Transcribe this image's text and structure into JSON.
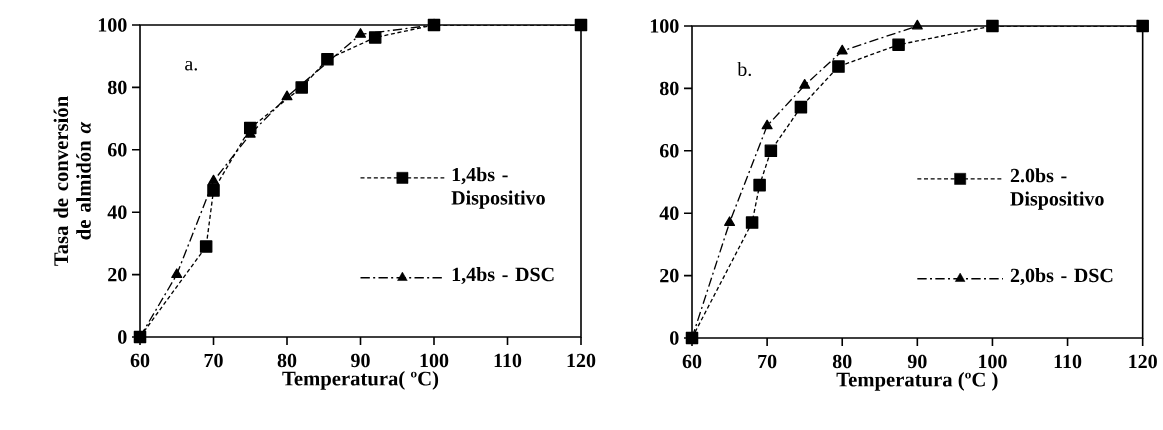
{
  "chart_data": [
    {
      "type": "line",
      "xlabel": "Temperatura( ºC)",
      "ylabel": "Tasa de conversión de almidón *α*",
      "annotations": [
        "a."
      ],
      "xlim": [
        60,
        120
      ],
      "ylim": [
        0,
        100
      ],
      "xticks": [
        60,
        70,
        80,
        90,
        100,
        110,
        120
      ],
      "yticks": [
        0,
        20,
        40,
        60,
        80,
        100
      ],
      "grid": false,
      "legend": "right",
      "series": [
        {
          "name": "1,4bs - Dispositivo",
          "color": "#000000",
          "marker": "square",
          "line_style": "dashed",
          "x": [
            60,
            69,
            70,
            75,
            82,
            85.5,
            92,
            100,
            120
          ],
          "values": [
            0,
            29,
            47,
            67,
            80,
            89,
            96,
            100,
            100
          ]
        },
        {
          "name": "1,4bs - DSC",
          "color": "#000000",
          "marker": "triangle",
          "line_style": "dashdot",
          "x": [
            60,
            65,
            70,
            75,
            80,
            90,
            100
          ],
          "values": [
            0,
            20,
            50,
            65,
            77,
            97,
            100
          ]
        }
      ]
    },
    {
      "type": "line",
      "xlabel": "Temperatura (ºC )",
      "annotations": [
        "b."
      ],
      "xlim": [
        60,
        120
      ],
      "ylim": [
        0,
        100
      ],
      "xticks": [
        60,
        70,
        80,
        90,
        100,
        110,
        120
      ],
      "yticks": [
        0,
        20,
        40,
        60,
        80,
        100
      ],
      "grid": false,
      "legend": "right",
      "series": [
        {
          "name": "2.0bs - Dispositivo",
          "color": "#000000",
          "marker": "square",
          "line_style": "dashed",
          "x": [
            60,
            68,
            69,
            70.5,
            74.5,
            79.5,
            87.5,
            100,
            120
          ],
          "values": [
            0,
            37,
            49,
            60,
            74,
            87,
            94,
            100,
            100
          ]
        },
        {
          "name": "2,0bs - DSC",
          "color": "#000000",
          "marker": "triangle",
          "line_style": "dashdot",
          "x": [
            60,
            65,
            70,
            75,
            80,
            90
          ],
          "values": [
            0,
            37,
            68,
            81,
            92,
            100
          ]
        }
      ]
    }
  ]
}
